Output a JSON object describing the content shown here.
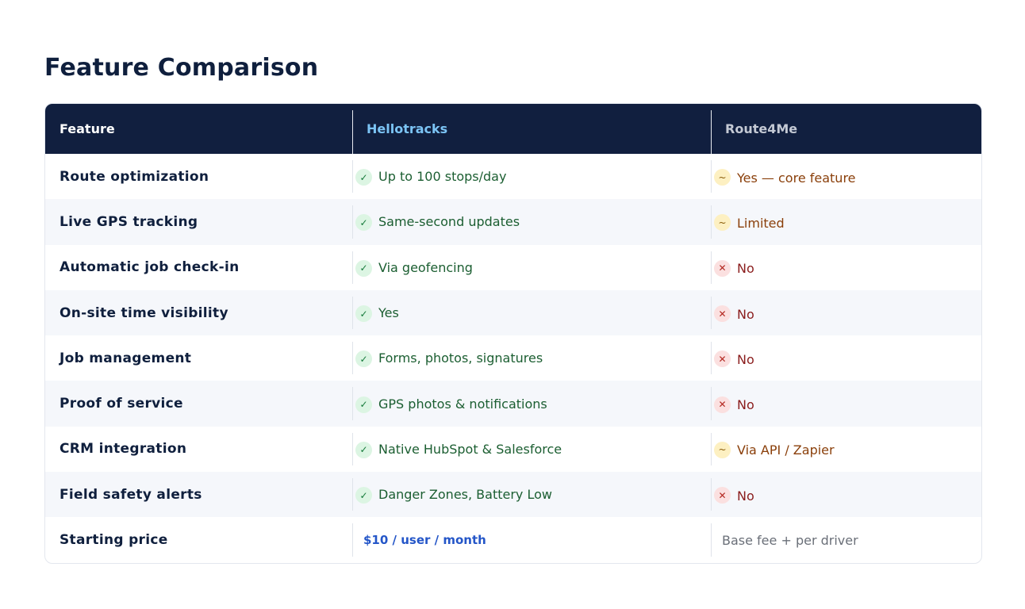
{
  "page": {
    "title": "Feature Comparison"
  },
  "table": {
    "headers": {
      "feature": "Feature",
      "product_a": "Hellotracks",
      "product_b": "Route4Me"
    },
    "rows": [
      {
        "feature": "Route optimization",
        "a": {
          "status": "yes",
          "icon": "check-icon",
          "glyph": "✓",
          "text": "Up to 100 stops/day"
        },
        "b": {
          "status": "partial",
          "icon": "tilde-icon",
          "glyph": "~",
          "text": "Yes — core feature"
        }
      },
      {
        "feature": "Live GPS tracking",
        "a": {
          "status": "yes",
          "icon": "check-icon",
          "glyph": "✓",
          "text": "Same-second updates"
        },
        "b": {
          "status": "partial",
          "icon": "tilde-icon",
          "glyph": "~",
          "text": "Limited"
        }
      },
      {
        "feature": "Automatic job check-in",
        "a": {
          "status": "yes",
          "icon": "check-icon",
          "glyph": "✓",
          "text": "Via geofencing"
        },
        "b": {
          "status": "no",
          "icon": "cross-icon",
          "glyph": "✕",
          "text": "No"
        }
      },
      {
        "feature": "On-site time visibility",
        "a": {
          "status": "yes",
          "icon": "check-icon",
          "glyph": "✓",
          "text": "Yes"
        },
        "b": {
          "status": "no",
          "icon": "cross-icon",
          "glyph": "✕",
          "text": "No"
        }
      },
      {
        "feature": "Job management",
        "a": {
          "status": "yes",
          "icon": "check-icon",
          "glyph": "✓",
          "text": "Forms, photos, signatures"
        },
        "b": {
          "status": "no",
          "icon": "cross-icon",
          "glyph": "✕",
          "text": "No"
        }
      },
      {
        "feature": "Proof of service",
        "a": {
          "status": "yes",
          "icon": "check-icon",
          "glyph": "✓",
          "text": "GPS photos & notifications"
        },
        "b": {
          "status": "no",
          "icon": "cross-icon",
          "glyph": "✕",
          "text": "No"
        }
      },
      {
        "feature": "CRM integration",
        "a": {
          "status": "yes",
          "icon": "check-icon",
          "glyph": "✓",
          "text": "Native HubSpot & Salesforce"
        },
        "b": {
          "status": "partial",
          "icon": "tilde-icon",
          "glyph": "~",
          "text": "Via API / Zapier"
        }
      },
      {
        "feature": "Field safety alerts",
        "a": {
          "status": "yes",
          "icon": "check-icon",
          "glyph": "✓",
          "text": "Danger Zones, Battery Low"
        },
        "b": {
          "status": "no",
          "icon": "cross-icon",
          "glyph": "✕",
          "text": "No"
        }
      }
    ],
    "price_row": {
      "feature": "Starting price",
      "a": "$10 / user / month",
      "b": "Base fee + per driver"
    }
  },
  "colors": {
    "header_bg": "#111f3f",
    "title": "#0f1f3d",
    "yes": "#1b5e31",
    "partial": "#8a3f0a",
    "no": "#8a1c1c",
    "price_accent": "#2456c8"
  }
}
